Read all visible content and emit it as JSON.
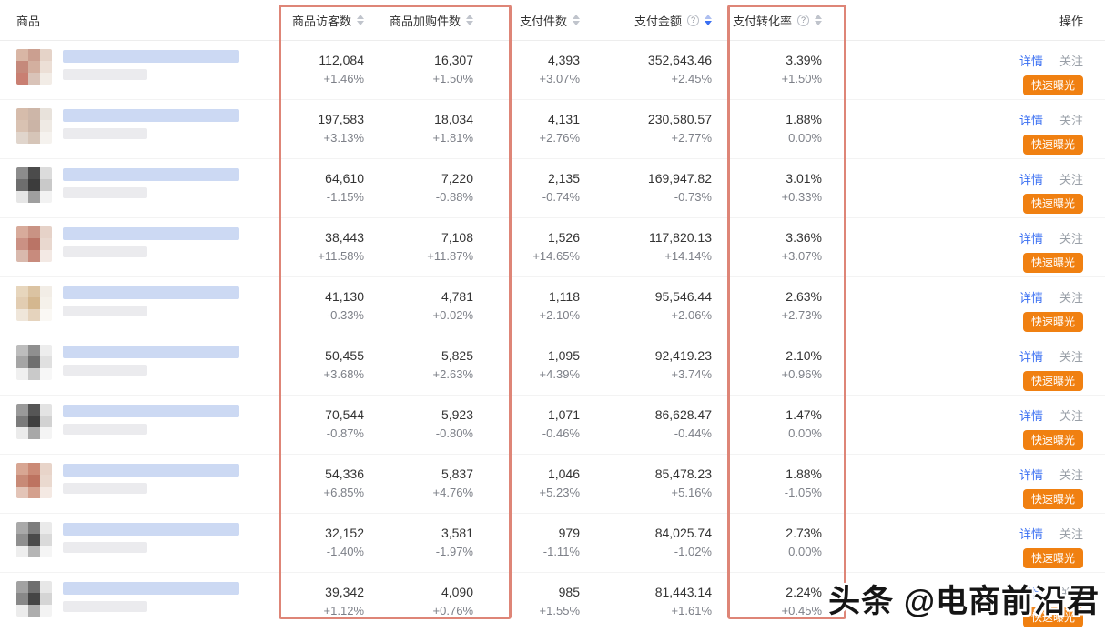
{
  "table": {
    "columns": [
      {
        "key": "product",
        "label": "商品",
        "sortable": false
      },
      {
        "key": "visitors",
        "label": "商品访客数",
        "sortable": true
      },
      {
        "key": "cart",
        "label": "商品加购件数",
        "sortable": true
      },
      {
        "key": "paid",
        "label": "支付件数",
        "sortable": true
      },
      {
        "key": "amount",
        "label": "支付金额",
        "sortable": true,
        "help": true,
        "sorted": "desc"
      },
      {
        "key": "conversion",
        "label": "支付转化率",
        "sortable": true,
        "help": true
      },
      {
        "key": "actions",
        "label": "操作"
      }
    ],
    "sort": {
      "column": "支付金额",
      "direction": "desc"
    },
    "actions": {
      "detail": "详情",
      "follow": "关注",
      "quick_exposure": "快速曝光"
    },
    "rows": [
      {
        "visitors": "112,084",
        "visitors_change": "+1.46%",
        "cart": "16,307",
        "cart_change": "+1.50%",
        "paid": "4,393",
        "paid_change": "+3.07%",
        "amount": "352,643.46",
        "amount_change": "+2.45%",
        "conversion": "3.39%",
        "conversion_change": "+1.50%",
        "thumb": [
          "#d9b6a5",
          "#cb9f90",
          "#e5d3c8",
          "#c5897b",
          "#d3af9f",
          "#ecdfd6",
          "#c97f72",
          "#d9c3b8",
          "#f2ece6"
        ]
      },
      {
        "visitors": "197,583",
        "visitors_change": "+3.13%",
        "cart": "18,034",
        "cart_change": "+1.81%",
        "paid": "4,131",
        "paid_change": "+2.76%",
        "amount": "230,580.57",
        "amount_change": "+2.77%",
        "conversion": "1.88%",
        "conversion_change": "0.00%",
        "thumb": [
          "#d6bcab",
          "#cdb6a8",
          "#e8e2db",
          "#d9c2b2",
          "#cbb4a6",
          "#efeae4",
          "#e0d5cc",
          "#d6c5b8",
          "#f5f2ee"
        ]
      },
      {
        "visitors": "64,610",
        "visitors_change": "-1.15%",
        "cart": "7,220",
        "cart_change": "-0.88%",
        "paid": "2,135",
        "paid_change": "-0.74%",
        "amount": "169,947.82",
        "amount_change": "-0.73%",
        "conversion": "3.01%",
        "conversion_change": "+0.33%",
        "thumb": [
          "#8c8c8c",
          "#4b4b4b",
          "#dcdcdc",
          "#6e6e6e",
          "#3c3c3c",
          "#c9c9c9",
          "#e6e6e6",
          "#9f9f9f",
          "#f2f2f2"
        ]
      },
      {
        "visitors": "38,443",
        "visitors_change": "+11.58%",
        "cart": "7,108",
        "cart_change": "+11.87%",
        "paid": "1,526",
        "paid_change": "+14.65%",
        "amount": "117,820.13",
        "amount_change": "+14.14%",
        "conversion": "3.36%",
        "conversion_change": "+3.07%",
        "thumb": [
          "#d8ab9b",
          "#c99384",
          "#e6d2c8",
          "#cb9184",
          "#ba7466",
          "#e9d8cf",
          "#d9b9ad",
          "#c88b7d",
          "#f3e9e4"
        ]
      },
      {
        "visitors": "41,130",
        "visitors_change": "-0.33%",
        "cart": "4,781",
        "cart_change": "+0.02%",
        "paid": "1,118",
        "paid_change": "+2.10%",
        "amount": "95,546.44",
        "amount_change": "+2.06%",
        "conversion": "2.63%",
        "conversion_change": "+2.73%",
        "thumb": [
          "#e7d6bd",
          "#dbc3a2",
          "#f2ede6",
          "#e2cdb2",
          "#d4b78f",
          "#f5f1ea",
          "#efe6da",
          "#e5d3bd",
          "#faf8f4"
        ]
      },
      {
        "visitors": "50,455",
        "visitors_change": "+3.68%",
        "cart": "5,825",
        "cart_change": "+2.63%",
        "paid": "1,095",
        "paid_change": "+4.39%",
        "amount": "92,419.23",
        "amount_change": "+3.74%",
        "conversion": "2.10%",
        "conversion_change": "+0.96%",
        "thumb": [
          "#bdbdbd",
          "#8f8f8f",
          "#ededed",
          "#a5a5a5",
          "#6f6f6f",
          "#e0e0e0",
          "#f0f0f0",
          "#c9c9c9",
          "#f7f7f7"
        ]
      },
      {
        "visitors": "70,544",
        "visitors_change": "-0.87%",
        "cart": "5,923",
        "cart_change": "-0.80%",
        "paid": "1,071",
        "paid_change": "-0.46%",
        "amount": "86,628.47",
        "amount_change": "-0.44%",
        "conversion": "1.47%",
        "conversion_change": "0.00%",
        "thumb": [
          "#9a9a9a",
          "#565656",
          "#e3e3e3",
          "#7b7b7b",
          "#3f3f3f",
          "#d2d2d2",
          "#ebebeb",
          "#a8a8a8",
          "#f4f4f4"
        ]
      },
      {
        "visitors": "54,336",
        "visitors_change": "+6.85%",
        "cart": "5,837",
        "cart_change": "+4.76%",
        "paid": "1,046",
        "paid_change": "+5.23%",
        "amount": "85,478.23",
        "amount_change": "+5.16%",
        "conversion": "1.88%",
        "conversion_change": "-1.05%",
        "thumb": [
          "#d8a693",
          "#cb8a76",
          "#e8d4c9",
          "#c88a77",
          "#bd7360",
          "#ead9cf",
          "#e3c4b7",
          "#d4a08d",
          "#f4e9e3"
        ]
      },
      {
        "visitors": "32,152",
        "visitors_change": "-1.40%",
        "cart": "3,581",
        "cart_change": "-1.97%",
        "paid": "979",
        "paid_change": "-1.11%",
        "amount": "84,025.74",
        "amount_change": "-1.02%",
        "conversion": "2.73%",
        "conversion_change": "0.00%",
        "thumb": [
          "#a9a9a9",
          "#7d7d7d",
          "#eaeaea",
          "#8f8f8f",
          "#4a4a4a",
          "#dadada",
          "#eeeeee",
          "#b5b5b5",
          "#f5f5f5"
        ]
      },
      {
        "visitors": "39,342",
        "visitors_change": "+1.12%",
        "cart": "4,090",
        "cart_change": "+0.76%",
        "paid": "985",
        "paid_change": "+1.55%",
        "amount": "81,443.14",
        "amount_change": "+1.61%",
        "conversion": "2.24%",
        "conversion_change": "+0.45%",
        "thumb": [
          "#a2a2a2",
          "#6f6f6f",
          "#e7e7e7",
          "#888888",
          "#454545",
          "#d5d5d5",
          "#ececec",
          "#adadad",
          "#f3f3f3"
        ]
      }
    ]
  },
  "icons": {
    "help": "?"
  },
  "annotations": {
    "highlight_color": "#de8577",
    "highlighted_columns": [
      "商品访客数",
      "商品加购件数",
      "支付转化率"
    ]
  },
  "watermark": "头条 @电商前沿君",
  "colors": {
    "link_blue": "#3a6ff2",
    "follow_gray": "#9aa0a8",
    "button_orange": "#f08011",
    "sort_active_blue": "#3a6ff2",
    "value_text": "#333333",
    "change_text": "#7d8088"
  }
}
